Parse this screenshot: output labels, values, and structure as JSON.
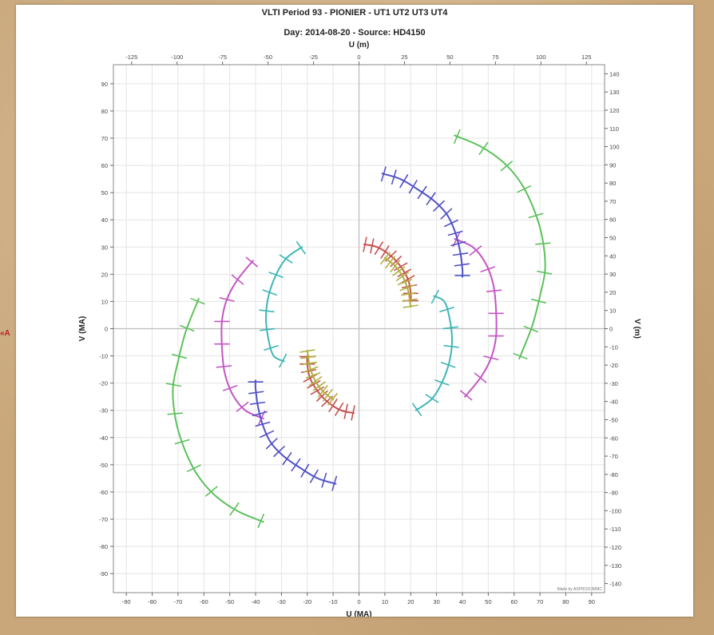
{
  "edge_mark": "«A",
  "chart_data": {
    "type": "scatter",
    "title": "VLTI Period 93 - PIONIER - UT1 UT2 UT3 UT4",
    "subtitle": "Day: 2014-08-20 - Source: HD4150",
    "xlabel": "U (MA)",
    "ylabel": "V (MA)",
    "x2label": "U (m)",
    "y2label": "V (m)",
    "xlim": [
      -95,
      95
    ],
    "ylim": [
      -97,
      97
    ],
    "x2lim": [
      -135,
      135
    ],
    "y2lim": [
      -145,
      145
    ],
    "grid": true,
    "xticks": [
      -90,
      -80,
      -70,
      -60,
      -50,
      -40,
      -30,
      -20,
      -10,
      0,
      10,
      20,
      30,
      40,
      50,
      60,
      70,
      80,
      90
    ],
    "yticks": [
      -90,
      -80,
      -70,
      -60,
      -50,
      -40,
      -30,
      -20,
      -10,
      0,
      10,
      20,
      30,
      40,
      50,
      60,
      70,
      80,
      90
    ],
    "x2ticks": [
      -125,
      -100,
      -75,
      -50,
      -25,
      0,
      25,
      50,
      75,
      100,
      125
    ],
    "y2ticks": [
      -140,
      -130,
      -120,
      -110,
      -100,
      -90,
      -80,
      -70,
      -60,
      -50,
      -40,
      -30,
      -20,
      -10,
      0,
      10,
      20,
      30,
      40,
      50,
      60,
      70,
      80,
      90,
      100,
      110,
      120,
      130,
      140
    ],
    "credit": "Made by ASPRO2/JMMC",
    "colors": {
      "green": "#5cc15c",
      "magenta": "#c455c4",
      "blue": "#5050c8",
      "cyan": "#3fb6b6",
      "red": "#c85050",
      "olive": "#b0b040"
    },
    "series": [
      {
        "color": "green",
        "ticks": 10,
        "points": [
          [
            37,
            71
          ],
          [
            47,
            67
          ],
          [
            56,
            61
          ],
          [
            63,
            53
          ],
          [
            68,
            43
          ],
          [
            71,
            33
          ],
          [
            72,
            22
          ],
          [
            70,
            12
          ],
          [
            67,
            1
          ],
          [
            62,
            -11
          ]
        ]
      },
      {
        "color": "green",
        "ticks": 10,
        "points": [
          [
            -37,
            -71
          ],
          [
            -47,
            -67
          ],
          [
            -56,
            -61
          ],
          [
            -63,
            -53
          ],
          [
            -68,
            -43
          ],
          [
            -71,
            -33
          ],
          [
            -72,
            -22
          ],
          [
            -70,
            -12
          ],
          [
            -67,
            -1
          ],
          [
            -62,
            11
          ]
        ]
      },
      {
        "color": "magenta",
        "ticks": 9,
        "points": [
          [
            37,
            33
          ],
          [
            44,
            30
          ],
          [
            49,
            24
          ],
          [
            52,
            16
          ],
          [
            53,
            7
          ],
          [
            53,
            -3
          ],
          [
            51,
            -11
          ],
          [
            47,
            -18
          ],
          [
            41,
            -25
          ]
        ]
      },
      {
        "color": "magenta",
        "ticks": 9,
        "points": [
          [
            -37,
            -33
          ],
          [
            -44,
            -30
          ],
          [
            -49,
            -24
          ],
          [
            -52,
            -16
          ],
          [
            -53,
            -7
          ],
          [
            -53,
            3
          ],
          [
            -51,
            11
          ],
          [
            -47,
            18
          ],
          [
            -41,
            25
          ]
        ]
      },
      {
        "color": "blue",
        "ticks": 14,
        "points": [
          [
            9,
            57
          ],
          [
            16,
            55
          ],
          [
            23,
            51
          ],
          [
            29,
            47
          ],
          [
            34,
            42
          ],
          [
            37,
            36
          ],
          [
            39,
            29
          ],
          [
            40,
            22
          ],
          [
            40,
            19
          ]
        ]
      },
      {
        "color": "blue",
        "ticks": 14,
        "points": [
          [
            -9,
            -57
          ],
          [
            -16,
            -55
          ],
          [
            -23,
            -51
          ],
          [
            -29,
            -47
          ],
          [
            -34,
            -42
          ],
          [
            -37,
            -36
          ],
          [
            -39,
            -29
          ],
          [
            -40,
            -22
          ],
          [
            -40,
            -19
          ]
        ]
      },
      {
        "color": "cyan",
        "ticks": 8,
        "points": [
          [
            -22,
            30
          ],
          [
            -28,
            26
          ],
          [
            -32,
            20
          ],
          [
            -35,
            12
          ],
          [
            -36,
            4
          ],
          [
            -35,
            -4
          ],
          [
            -33,
            -10
          ],
          [
            -29,
            -12
          ]
        ]
      },
      {
        "color": "cyan",
        "ticks": 8,
        "points": [
          [
            22,
            -30
          ],
          [
            28,
            -26
          ],
          [
            32,
            -20
          ],
          [
            35,
            -12
          ],
          [
            36,
            -4
          ],
          [
            35,
            4
          ],
          [
            33,
            10
          ],
          [
            29,
            12
          ]
        ]
      },
      {
        "color": "red",
        "ticks": 12,
        "points": [
          [
            2,
            31
          ],
          [
            7,
            30
          ],
          [
            12,
            27
          ],
          [
            16,
            23
          ],
          [
            19,
            18
          ],
          [
            20,
            13
          ],
          [
            20,
            10
          ]
        ]
      },
      {
        "color": "red",
        "ticks": 12,
        "points": [
          [
            -2,
            -31
          ],
          [
            -7,
            -30
          ],
          [
            -12,
            -27
          ],
          [
            -16,
            -23
          ],
          [
            -19,
            -18
          ],
          [
            -20,
            -13
          ],
          [
            -20,
            -10
          ]
        ]
      },
      {
        "color": "olive",
        "ticks": 10,
        "points": [
          [
            10,
            26
          ],
          [
            14,
            23
          ],
          [
            17,
            19
          ],
          [
            19,
            14
          ],
          [
            20,
            8
          ]
        ]
      },
      {
        "color": "olive",
        "ticks": 10,
        "points": [
          [
            -10,
            -26
          ],
          [
            -14,
            -23
          ],
          [
            -17,
            -19
          ],
          [
            -19,
            -14
          ],
          [
            -20,
            -8
          ]
        ]
      }
    ]
  }
}
